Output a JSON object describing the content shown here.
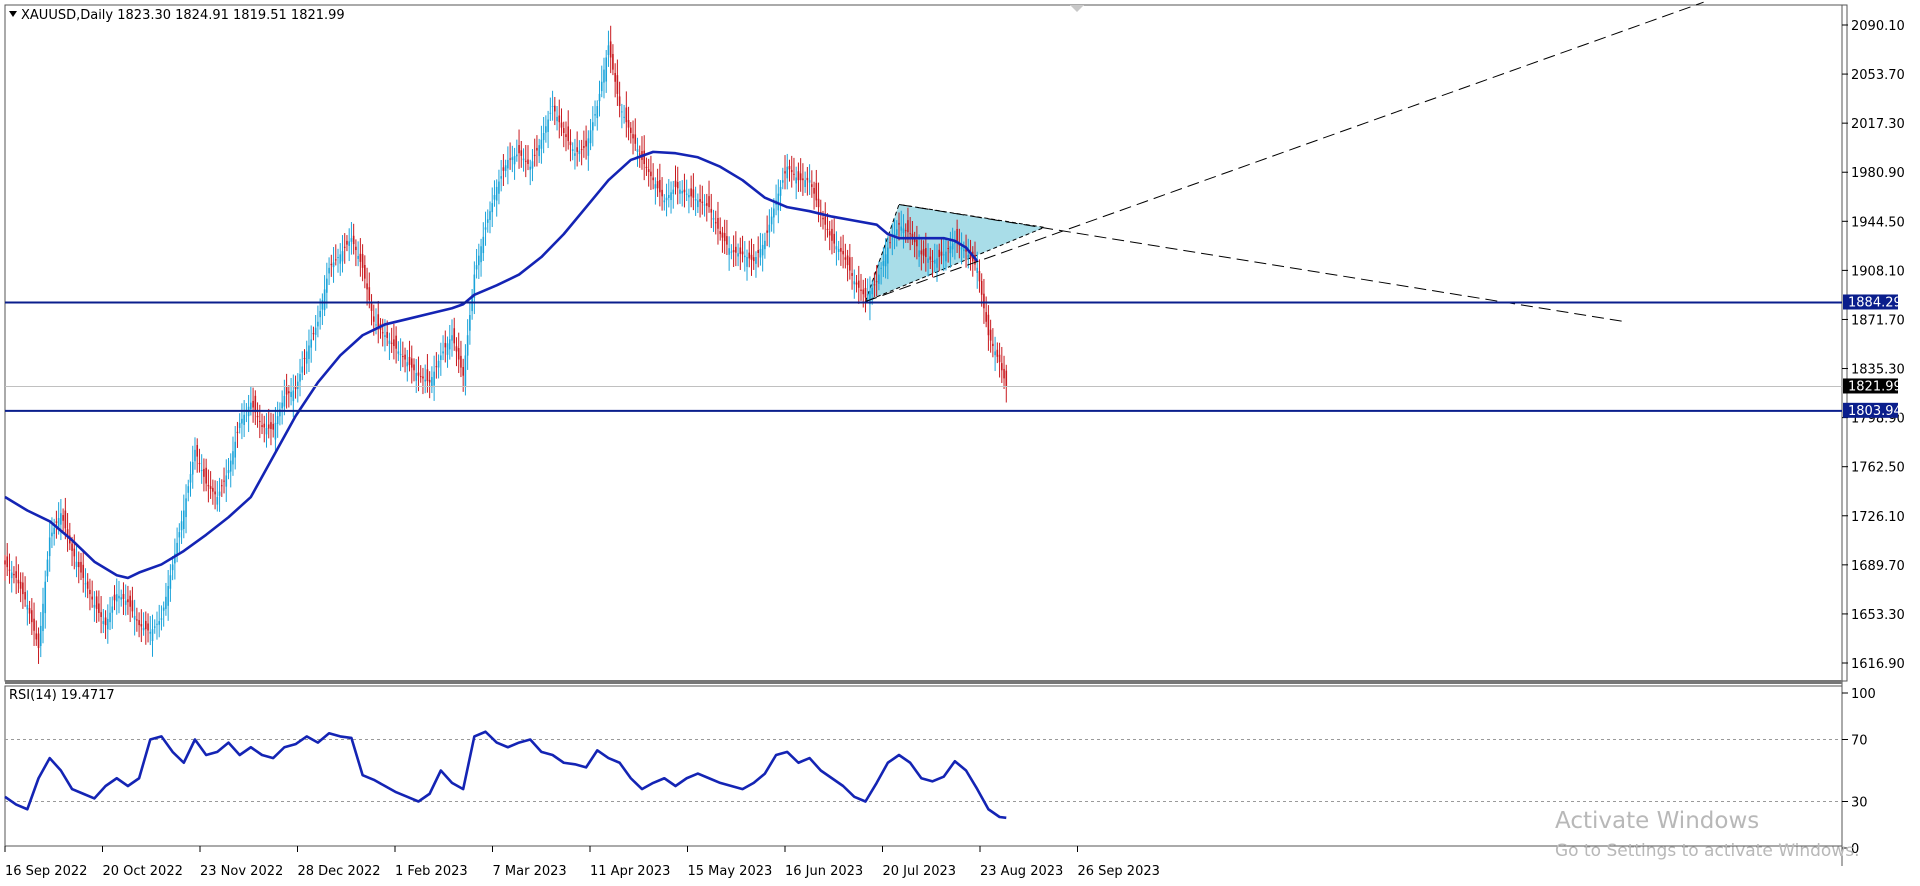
{
  "header": {
    "symbol_line": "XAUUSD,Daily  1823.30 1824.91 1819.51 1821.99"
  },
  "rsi_panel": {
    "label": "RSI(14) 19.4717"
  },
  "watermark": {
    "title": "Activate Windows",
    "subtitle": "Go to Settings to activate Windows."
  },
  "colors": {
    "bull": "#1aa3d9",
    "bear": "#c8191e",
    "ma": "#1424b4",
    "level": "#0a1e8c",
    "triangle_fill": "#a9dde8",
    "axis": "#000000"
  },
  "chart_data": [
    {
      "type": "candlestick",
      "symbol": "XAUUSD",
      "timeframe": "Daily",
      "last": {
        "open": 1823.3,
        "high": 1824.91,
        "low": 1819.51,
        "close": 1821.99
      },
      "ylim": [
        1600.0,
        2105.0
      ],
      "y_ticks": [
        "2090.10",
        "2053.70",
        "2017.30",
        "1980.90",
        "1944.50",
        "1908.10",
        "1871.70",
        "1835.30",
        "1798.90",
        "1762.50",
        "1726.10",
        "1689.70",
        "1653.30",
        "1616.90"
      ],
      "x_ticks": [
        "16 Sep 2022",
        "20 Oct 2022",
        "23 Nov 2022",
        "28 Dec 2022",
        "1 Feb 2023",
        "7 Mar 2023",
        "11 Apr 2023",
        "15 May 2023",
        "16 Jun 2023",
        "20 Jul 2023",
        "23 Aug 2023",
        "26 Sep 2023"
      ],
      "price_labels": {
        "resistance": "1884.29",
        "support": "1803.94",
        "current": "1821.99"
      },
      "horizontal_levels": [
        1884.29,
        1803.94
      ],
      "close_path": [
        [
          0,
          1690
        ],
        [
          5,
          1680
        ],
        [
          10,
          1660
        ],
        [
          15,
          1628
        ],
        [
          20,
          1710
        ],
        [
          25,
          1728
        ],
        [
          30,
          1700
        ],
        [
          35,
          1680
        ],
        [
          40,
          1660
        ],
        [
          45,
          1645
        ],
        [
          50,
          1668
        ],
        [
          55,
          1662
        ],
        [
          60,
          1645
        ],
        [
          65,
          1640
        ],
        [
          70,
          1650
        ],
        [
          75,
          1690
        ],
        [
          80,
          1730
        ],
        [
          85,
          1775
        ],
        [
          90,
          1750
        ],
        [
          95,
          1740
        ],
        [
          100,
          1760
        ],
        [
          105,
          1795
        ],
        [
          110,
          1810
        ],
        [
          115,
          1792
        ],
        [
          120,
          1790
        ],
        [
          125,
          1815
        ],
        [
          130,
          1820
        ],
        [
          135,
          1848
        ],
        [
          140,
          1870
        ],
        [
          145,
          1910
        ],
        [
          150,
          1920
        ],
        [
          155,
          1932
        ],
        [
          160,
          1910
        ],
        [
          165,
          1870
        ],
        [
          170,
          1860
        ],
        [
          175,
          1850
        ],
        [
          180,
          1840
        ],
        [
          185,
          1830
        ],
        [
          190,
          1825
        ],
        [
          195,
          1845
        ],
        [
          200,
          1860
        ],
        [
          205,
          1830
        ],
        [
          210,
          1905
        ],
        [
          215,
          1940
        ],
        [
          220,
          1970
        ],
        [
          225,
          1990
        ],
        [
          230,
          1995
        ],
        [
          235,
          1985
        ],
        [
          240,
          2005
        ],
        [
          245,
          2030
        ],
        [
          250,
          2010
        ],
        [
          255,
          1995
        ],
        [
          260,
          2000
        ],
        [
          265,
          2030
        ],
        [
          270,
          2075
        ],
        [
          275,
          2030
        ],
        [
          280,
          2010
        ],
        [
          285,
          1990
        ],
        [
          290,
          1975
        ],
        [
          295,
          1960
        ],
        [
          300,
          1970
        ],
        [
          305,
          1965
        ],
        [
          310,
          1960
        ],
        [
          315,
          1955
        ],
        [
          320,
          1935
        ],
        [
          325,
          1922
        ],
        [
          330,
          1920
        ],
        [
          335,
          1915
        ],
        [
          340,
          1930
        ],
        [
          345,
          1960
        ],
        [
          350,
          1985
        ],
        [
          355,
          1975
        ],
        [
          360,
          1975
        ],
        [
          365,
          1950
        ],
        [
          370,
          1930
        ],
        [
          375,
          1920
        ],
        [
          380,
          1900
        ],
        [
          385,
          1888
        ],
        [
          390,
          1900
        ],
        [
          395,
          1925
        ],
        [
          400,
          1942
        ],
        [
          405,
          1935
        ],
        [
          410,
          1920
        ],
        [
          415,
          1915
        ],
        [
          420,
          1920
        ],
        [
          425,
          1930
        ],
        [
          430,
          1922
        ],
        [
          435,
          1910
        ],
        [
          440,
          1860
        ],
        [
          445,
          1840
        ],
        [
          448,
          1822
        ]
      ],
      "moving_average_path": [
        [
          0,
          1740
        ],
        [
          10,
          1730
        ],
        [
          20,
          1722
        ],
        [
          30,
          1708
        ],
        [
          40,
          1692
        ],
        [
          50,
          1682
        ],
        [
          55,
          1680
        ],
        [
          60,
          1684
        ],
        [
          70,
          1690
        ],
        [
          80,
          1700
        ],
        [
          90,
          1712
        ],
        [
          100,
          1725
        ],
        [
          110,
          1740
        ],
        [
          120,
          1770
        ],
        [
          130,
          1800
        ],
        [
          140,
          1825
        ],
        [
          150,
          1845
        ],
        [
          160,
          1860
        ],
        [
          170,
          1868
        ],
        [
          180,
          1872
        ],
        [
          190,
          1876
        ],
        [
          200,
          1880
        ],
        [
          205,
          1883
        ],
        [
          210,
          1890
        ],
        [
          220,
          1897
        ],
        [
          230,
          1905
        ],
        [
          240,
          1918
        ],
        [
          250,
          1935
        ],
        [
          260,
          1955
        ],
        [
          270,
          1975
        ],
        [
          280,
          1990
        ],
        [
          290,
          1996
        ],
        [
          300,
          1995
        ],
        [
          310,
          1992
        ],
        [
          320,
          1985
        ],
        [
          330,
          1975
        ],
        [
          340,
          1962
        ],
        [
          350,
          1955
        ],
        [
          360,
          1952
        ],
        [
          370,
          1948
        ],
        [
          380,
          1945
        ],
        [
          390,
          1942
        ],
        [
          395,
          1935
        ],
        [
          400,
          1932
        ],
        [
          410,
          1932
        ],
        [
          420,
          1932
        ],
        [
          425,
          1930
        ],
        [
          430,
          1925
        ],
        [
          435,
          1915
        ]
      ],
      "triangle": {
        "points": [
          [
            385,
            1885
          ],
          [
            400,
            1957
          ],
          [
            465,
            1940
          ]
        ]
      },
      "trendlines": [
        {
          "from": [
            400,
            1957
          ],
          "to": [
            725,
            1870
          ]
        },
        {
          "from": [
            385,
            1885
          ],
          "to": [
            760,
            2107
          ]
        }
      ]
    },
    {
      "type": "line",
      "indicator": "RSI(14)",
      "value": 19.4717,
      "ylim": [
        0,
        100
      ],
      "y_ticks": [
        "100",
        "70",
        "30",
        "0"
      ],
      "levels": [
        70,
        30
      ],
      "rsi_path": [
        [
          0,
          33
        ],
        [
          5,
          28
        ],
        [
          10,
          25
        ],
        [
          15,
          45
        ],
        [
          20,
          58
        ],
        [
          25,
          50
        ],
        [
          30,
          38
        ],
        [
          35,
          35
        ],
        [
          40,
          32
        ],
        [
          45,
          40
        ],
        [
          50,
          45
        ],
        [
          55,
          40
        ],
        [
          60,
          45
        ],
        [
          65,
          70
        ],
        [
          70,
          72
        ],
        [
          75,
          62
        ],
        [
          80,
          55
        ],
        [
          85,
          70
        ],
        [
          90,
          60
        ],
        [
          95,
          62
        ],
        [
          100,
          68
        ],
        [
          105,
          60
        ],
        [
          110,
          65
        ],
        [
          115,
          60
        ],
        [
          120,
          58
        ],
        [
          125,
          65
        ],
        [
          130,
          67
        ],
        [
          135,
          72
        ],
        [
          140,
          68
        ],
        [
          145,
          74
        ],
        [
          150,
          72
        ],
        [
          155,
          71
        ],
        [
          160,
          47
        ],
        [
          165,
          44
        ],
        [
          170,
          40
        ],
        [
          175,
          36
        ],
        [
          180,
          33
        ],
        [
          185,
          30
        ],
        [
          190,
          35
        ],
        [
          195,
          50
        ],
        [
          200,
          42
        ],
        [
          205,
          38
        ],
        [
          210,
          72
        ],
        [
          215,
          75
        ],
        [
          220,
          68
        ],
        [
          225,
          65
        ],
        [
          230,
          68
        ],
        [
          235,
          70
        ],
        [
          240,
          62
        ],
        [
          245,
          60
        ],
        [
          250,
          55
        ],
        [
          255,
          54
        ],
        [
          260,
          52
        ],
        [
          265,
          63
        ],
        [
          270,
          58
        ],
        [
          275,
          55
        ],
        [
          280,
          45
        ],
        [
          285,
          38
        ],
        [
          290,
          42
        ],
        [
          295,
          45
        ],
        [
          300,
          40
        ],
        [
          305,
          45
        ],
        [
          310,
          48
        ],
        [
          315,
          45
        ],
        [
          320,
          42
        ],
        [
          325,
          40
        ],
        [
          330,
          38
        ],
        [
          335,
          42
        ],
        [
          340,
          48
        ],
        [
          345,
          60
        ],
        [
          350,
          62
        ],
        [
          355,
          55
        ],
        [
          360,
          58
        ],
        [
          365,
          50
        ],
        [
          370,
          45
        ],
        [
          375,
          40
        ],
        [
          380,
          33
        ],
        [
          385,
          30
        ],
        [
          390,
          42
        ],
        [
          395,
          55
        ],
        [
          400,
          60
        ],
        [
          405,
          55
        ],
        [
          410,
          45
        ],
        [
          415,
          43
        ],
        [
          420,
          46
        ],
        [
          425,
          56
        ],
        [
          430,
          50
        ],
        [
          435,
          38
        ],
        [
          440,
          25
        ],
        [
          445,
          20
        ],
        [
          448,
          19.5
        ]
      ]
    }
  ]
}
